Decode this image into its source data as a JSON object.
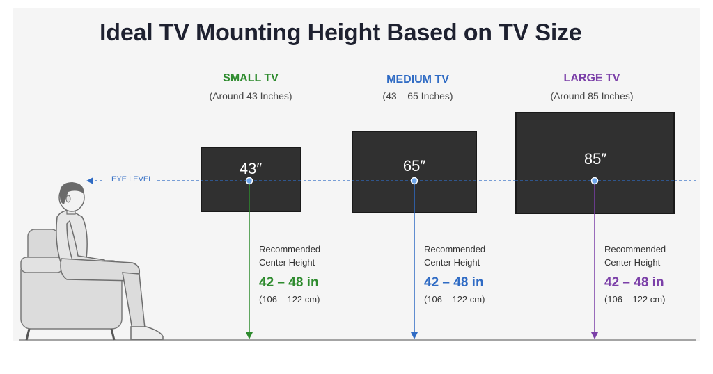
{
  "title": "Ideal TV Mounting Height Based on TV Size",
  "eye_level_label": "EYE LEVEL",
  "colors": {
    "small": "#2e8b2e",
    "medium": "#2f6bc4",
    "large": "#7b3fa8",
    "eye_line": "#2f6bc4",
    "tv_screen": "#303030"
  },
  "categories": [
    {
      "title": "SMALL TV",
      "subtitle": "(Around 43 Inches)",
      "screen_label": "43″",
      "rec_line1": "Recommended",
      "rec_line2": "Center Height",
      "value": "42 – 48 in",
      "metric": "(106 – 122 cm)"
    },
    {
      "title": "MEDIUM TV",
      "subtitle": "(43 – 65 Inches)",
      "screen_label": "65″",
      "rec_line1": "Recommended",
      "rec_line2": "Center Height",
      "value": "42 – 48 in",
      "metric": "(106 – 122 cm)"
    },
    {
      "title": "LARGE TV",
      "subtitle": "(Around 85 Inches)",
      "screen_label": "85″",
      "rec_line1": "Recommended",
      "rec_line2": "Center Height",
      "value": "42 – 48 in",
      "metric": "(106 – 122 cm)"
    }
  ]
}
